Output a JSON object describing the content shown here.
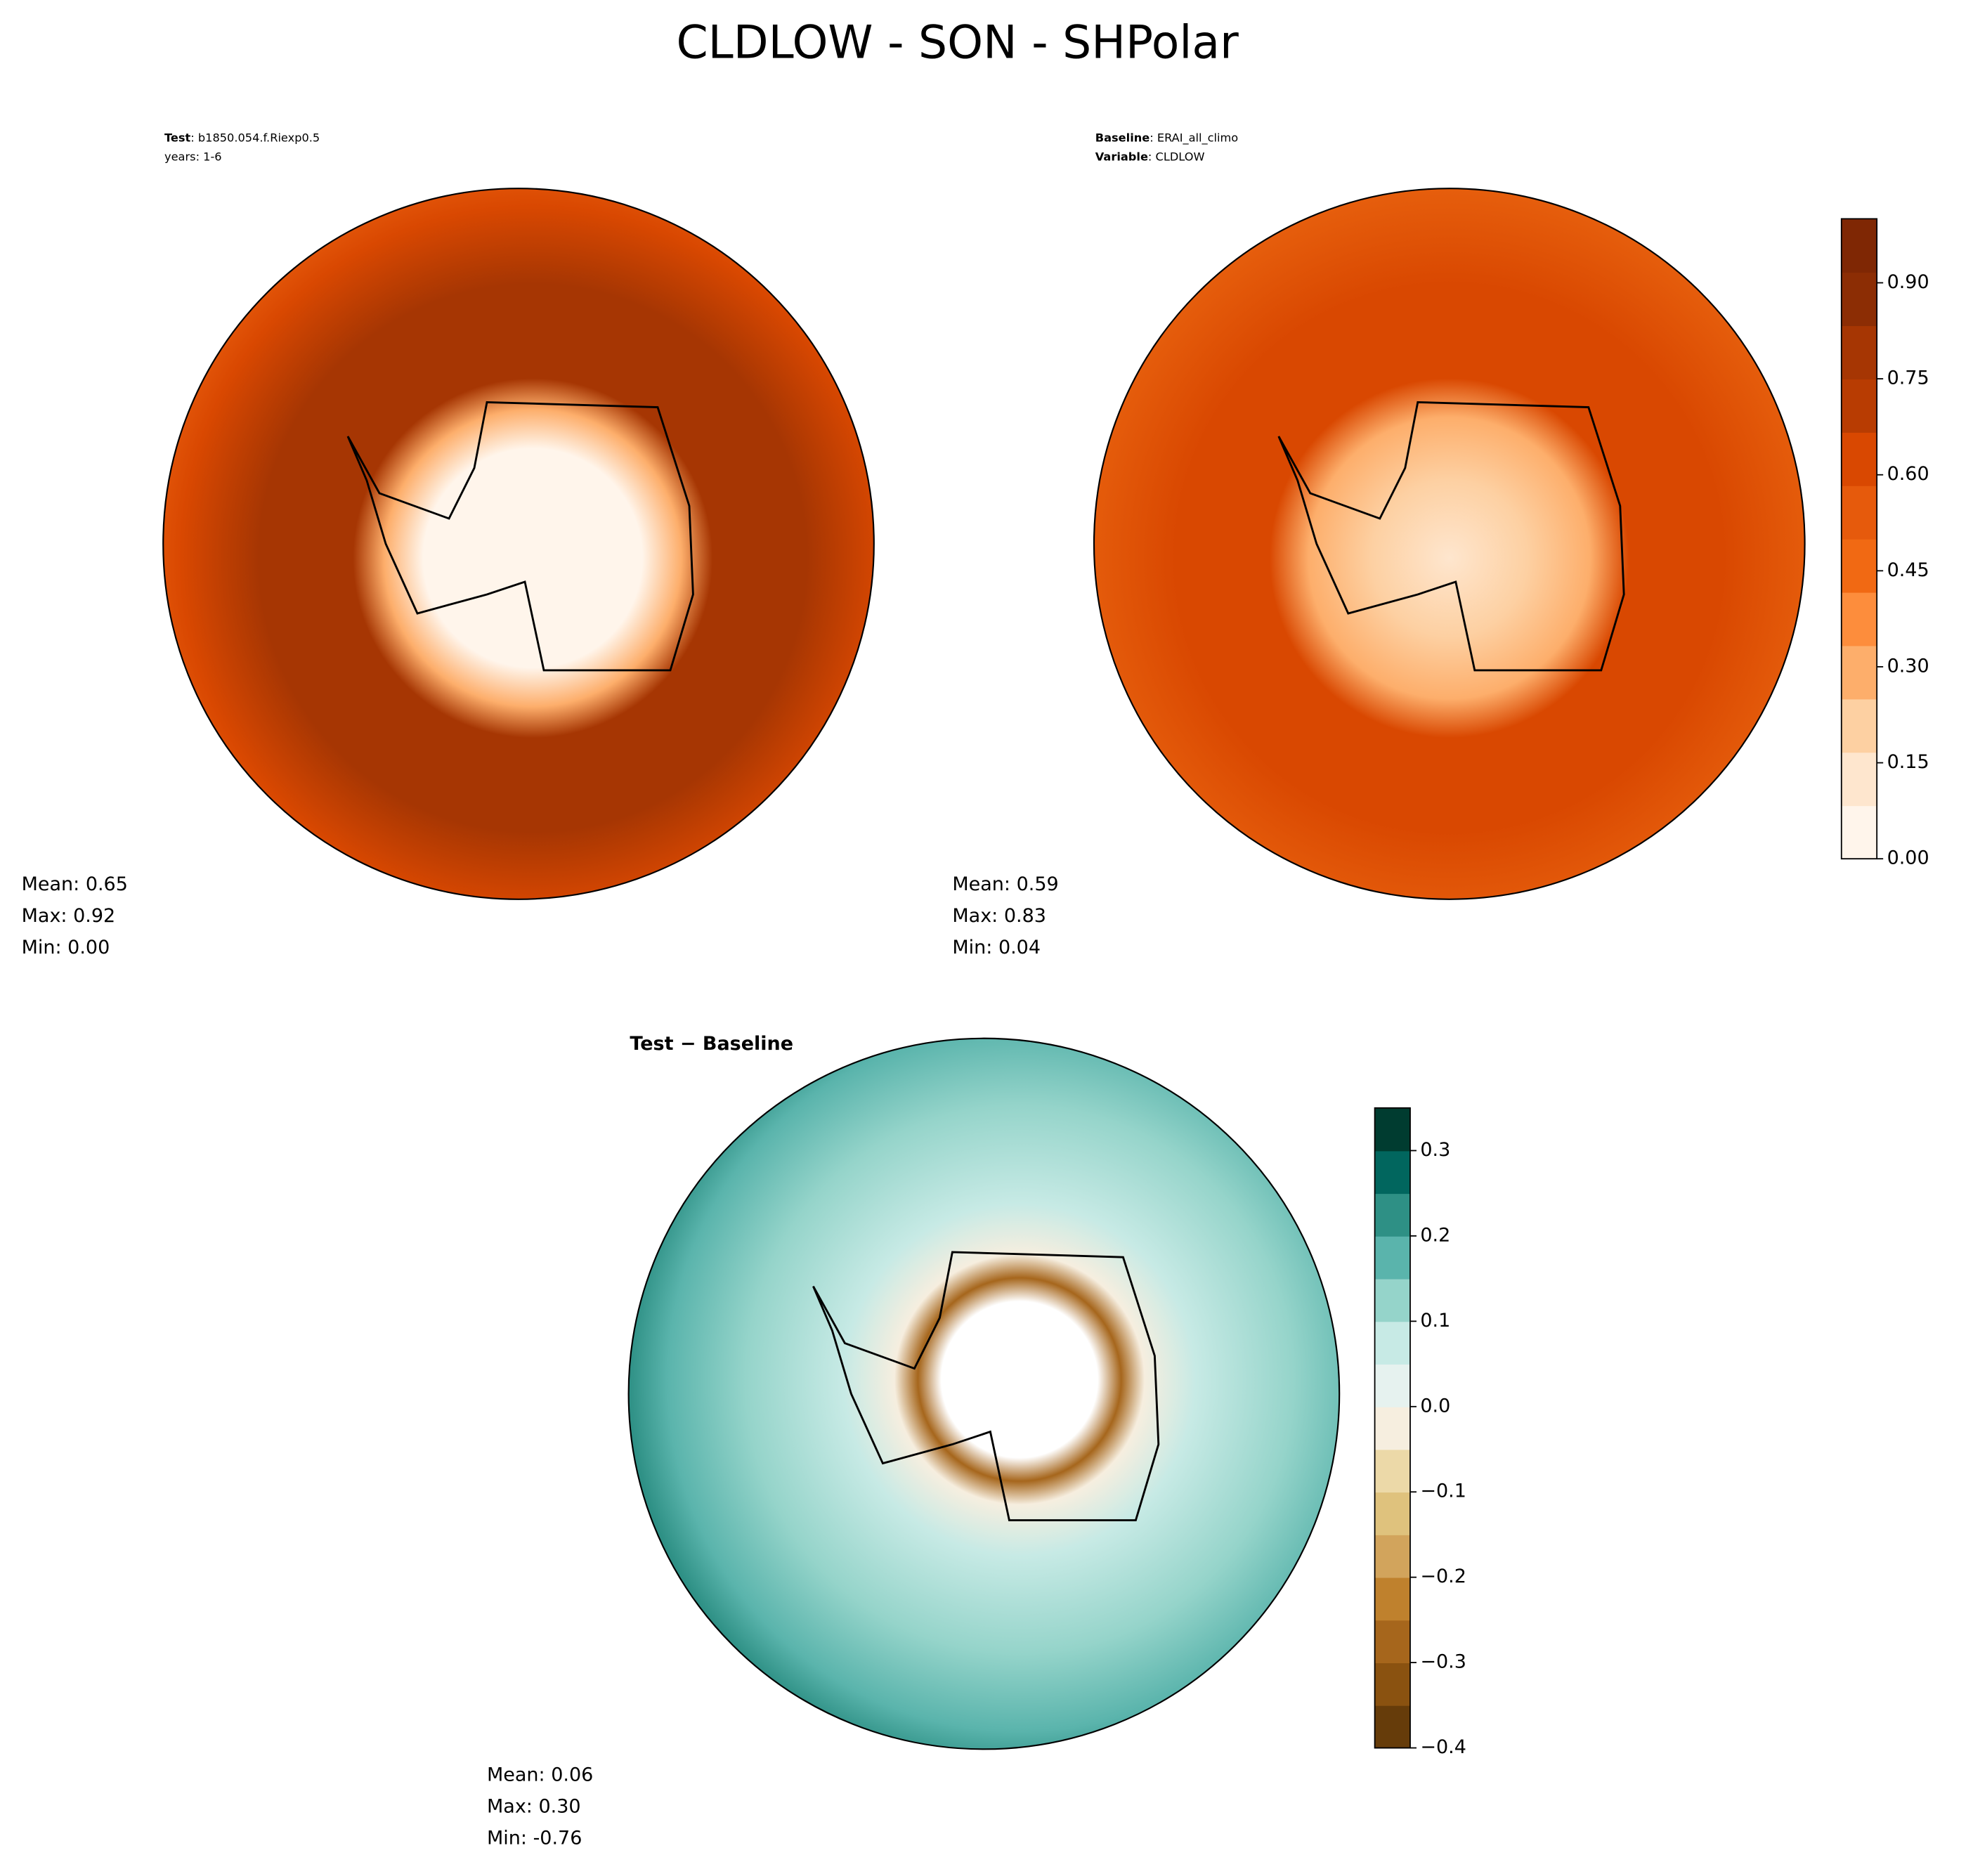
{
  "title": "CLDLOW - SON - SHPolar",
  "panels": [
    {
      "header": [
        {
          "key": "Test",
          "text": ": b1850.054.f.Riexp0.5"
        },
        {
          "text": "years: 1-6"
        }
      ],
      "stats": [
        "Mean:  0.65",
        "Max:  0.92",
        "Min:  0.00"
      ]
    },
    {
      "header": [
        {
          "key": "Baseline",
          "text": ": ERAI_all_climo"
        },
        {
          "key": "Variable",
          "text": ": CLDLOW"
        }
      ],
      "stats": [
        "Mean:  0.59",
        "Max:  0.83",
        "Min:  0.04"
      ]
    },
    {
      "header": [
        {
          "key": "Test − Baseline"
        }
      ],
      "stats": [
        "Mean:  0.06",
        "Max:  0.30",
        "Min: -0.76"
      ]
    }
  ],
  "colorbars": [
    {
      "lim": [
        0,
        1
      ],
      "ticks": [
        {
          "value": 0,
          "label": "0.00"
        },
        0.15,
        {
          "value": 0.3,
          "label": "0.30"
        },
        0.45,
        {
          "value": 0.6,
          "label": "0.60"
        },
        0.75,
        {
          "value": 0.9,
          "label": "0.90"
        }
      ],
      "colors": [
        "#fff5eb",
        "#fee6ce",
        "#fdd0a2",
        "#fdae6b",
        "#fd8d3c",
        "#f16913",
        "#e65a0c",
        "#d94801",
        "#b83c02",
        "#a63603",
        "#8c2d04",
        "#7f2704"
      ]
    },
    {
      "lim": [
        -0.4,
        0.35
      ],
      "ticks": [
        {
          "value": -0.4,
          "label": "−0.4"
        },
        {
          "value": -0.3,
          "label": "−0.3"
        },
        {
          "value": -0.2,
          "label": "−0.2"
        },
        {
          "value": -0.1,
          "label": "−0.1"
        },
        {
          "value": 0,
          "label": "0.0"
        },
        0.1,
        0.2,
        0.3
      ],
      "colors": [
        "#663c0a",
        "#8a5210",
        "#a6661c",
        "#bf812d",
        "#d2a45c",
        "#dfc27d",
        "#ecd9a8",
        "#f6eedf",
        "#e6f2ef",
        "#c7eae5",
        "#95d4ca",
        "#5ab4ac",
        "#2e9085",
        "#01665e",
        "#003c30"
      ]
    }
  ]
}
